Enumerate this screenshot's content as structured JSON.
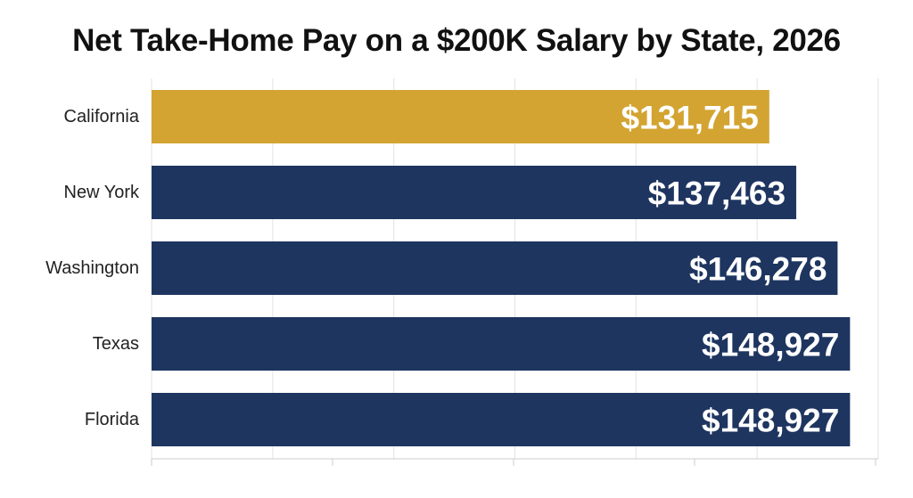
{
  "chart_data": {
    "type": "bar",
    "orientation": "horizontal",
    "title": "Net Take-Home Pay on a $200K Salary by State, 2026",
    "xlabel": "",
    "ylabel": "",
    "categories": [
      "California",
      "New York",
      "Washington",
      "Texas",
      "Florida"
    ],
    "values": [
      131715,
      137463,
      146278,
      148927,
      148927
    ],
    "value_labels": [
      "$131,715",
      "$137,463",
      "$146,278",
      "$148,927",
      "$148,927"
    ],
    "highlight_category": "California",
    "xlim": [
      0,
      150000
    ],
    "grid": true,
    "legend": "none"
  },
  "colors": {
    "highlight": "#D3A431",
    "bar": "#1E3560",
    "grid": "#E2E2E2",
    "axis": "#CCCCCC"
  }
}
